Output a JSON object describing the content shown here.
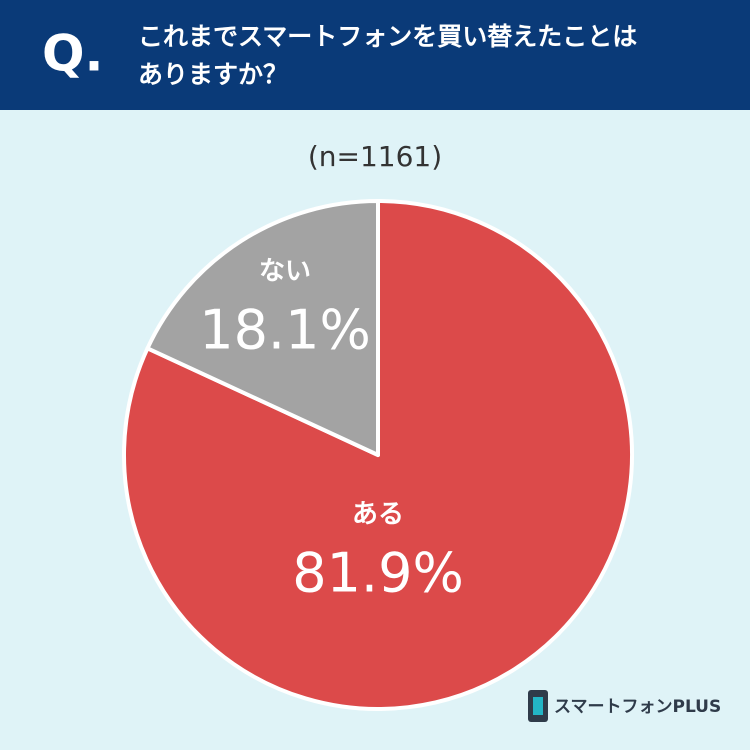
{
  "chart_data": {
    "type": "pie",
    "title_prefix": "Q.",
    "title_lines": [
      "これまでスマートフォンを買い替えたことは",
      "ありますか？"
    ],
    "subtitle": "(n=1161)",
    "categories": [
      "ある",
      "ない"
    ],
    "values": [
      81.9,
      18.1
    ],
    "value_labels": [
      "81.9%",
      "18.1%"
    ],
    "colors": [
      "#dc4a4a",
      "#a3a3a3"
    ],
    "brand": "スマートフォンPLUS"
  }
}
